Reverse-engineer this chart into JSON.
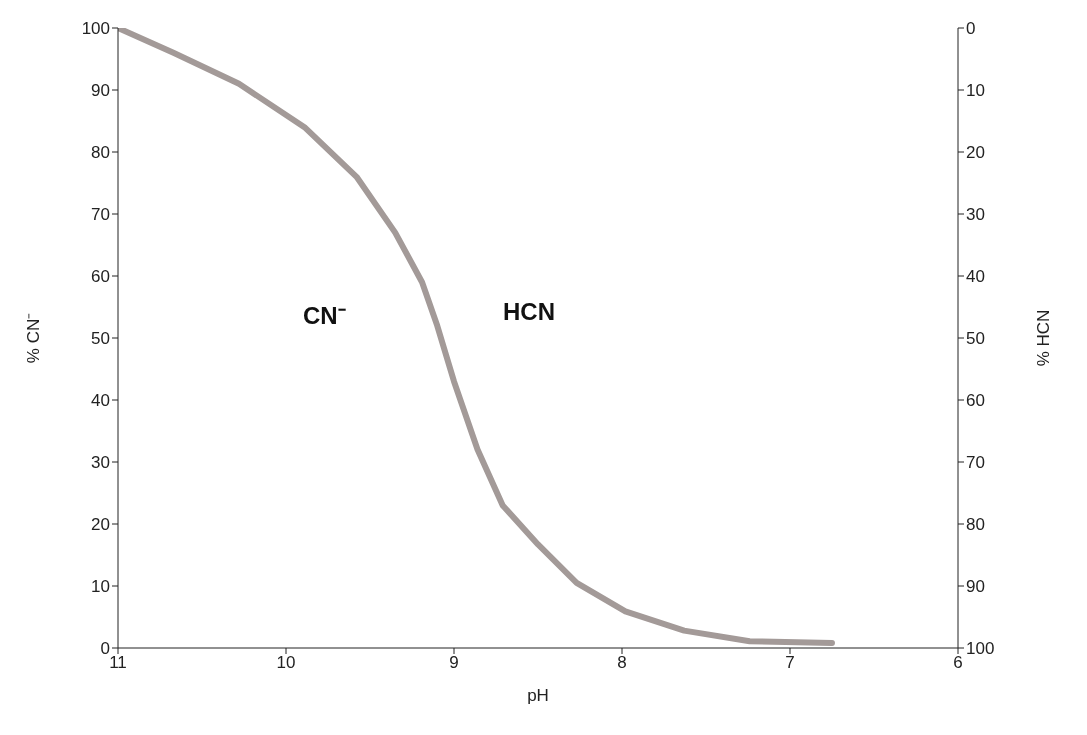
{
  "chart_data": {
    "type": "line",
    "xlabel": "pH",
    "ylabel": "% CN⁻",
    "y2label": "% HCN",
    "x": [
      11,
      10.67,
      10.28,
      9.89,
      9.58,
      9.35,
      9.19,
      9.1,
      9.0,
      8.86,
      8.71,
      8.5,
      8.27,
      7.98,
      7.63,
      7.24,
      6.75
    ],
    "series": [
      {
        "color": "#a39a98",
        "values": [
          100,
          96,
          91,
          84,
          76,
          67,
          59,
          52,
          43,
          32,
          23,
          16.7,
          10.5,
          5.9,
          2.8,
          1.1,
          0.8
        ]
      }
    ],
    "xlim": [
      11,
      6
    ],
    "xticks": [
      11,
      10,
      9,
      8,
      7,
      6
    ],
    "ylim": [
      0,
      100
    ],
    "yticks": [
      0,
      10,
      20,
      30,
      40,
      50,
      60,
      70,
      80,
      90,
      100
    ],
    "y2lim": [
      100,
      0
    ],
    "y2ticks": [
      0,
      10,
      20,
      30,
      40,
      50,
      60,
      70,
      80,
      90,
      100
    ],
    "grid": false,
    "legend": false,
    "marker": "none",
    "line_style": "solid",
    "annotations": [
      "CN⁻",
      "HCN"
    ]
  }
}
